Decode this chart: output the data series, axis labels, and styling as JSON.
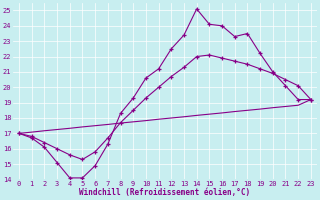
{
  "xlabel": "Windchill (Refroidissement éolien,°C)",
  "bg_color": "#c8eef0",
  "line_color": "#880088",
  "grid_color": "#b0d8dc",
  "xlim": [
    -0.5,
    23.5
  ],
  "ylim": [
    14,
    25.5
  ],
  "xticks": [
    0,
    1,
    2,
    3,
    4,
    5,
    6,
    7,
    8,
    9,
    10,
    11,
    12,
    13,
    14,
    15,
    16,
    17,
    18,
    19,
    20,
    21,
    22,
    23
  ],
  "yticks": [
    14,
    15,
    16,
    17,
    18,
    19,
    20,
    21,
    22,
    23,
    24,
    25
  ],
  "line1_x": [
    0,
    1,
    2,
    3,
    4,
    5,
    6,
    7,
    8,
    9,
    10,
    11,
    12,
    13,
    14,
    15,
    16,
    17,
    18,
    19,
    20,
    21,
    22,
    23
  ],
  "line1_y": [
    17.0,
    16.7,
    16.1,
    15.1,
    14.1,
    14.1,
    14.9,
    16.3,
    18.3,
    19.3,
    20.6,
    21.2,
    22.5,
    23.4,
    25.1,
    24.1,
    24.0,
    23.3,
    23.5,
    22.2,
    21.0,
    20.1,
    19.2,
    19.2
  ],
  "line2_x": [
    0,
    1,
    2,
    3,
    4,
    5,
    6,
    7,
    8,
    9,
    10,
    11,
    12,
    13,
    14,
    15,
    16,
    17,
    18,
    19,
    20,
    21,
    22,
    23
  ],
  "line2_y": [
    17.0,
    16.8,
    16.4,
    16.0,
    15.6,
    15.3,
    15.8,
    16.7,
    17.7,
    18.5,
    19.3,
    20.0,
    20.7,
    21.3,
    22.0,
    22.1,
    21.9,
    21.7,
    21.5,
    21.2,
    20.9,
    20.5,
    20.1,
    19.2
  ],
  "line3_x": [
    0,
    1,
    2,
    3,
    4,
    5,
    6,
    7,
    8,
    9,
    10,
    11,
    12,
    13,
    14,
    15,
    16,
    17,
    18,
    19,
    20,
    21,
    22,
    23
  ],
  "line3_y": [
    17.0,
    17.08,
    17.17,
    17.25,
    17.33,
    17.42,
    17.5,
    17.58,
    17.67,
    17.75,
    17.83,
    17.92,
    18.0,
    18.08,
    18.17,
    18.25,
    18.33,
    18.42,
    18.5,
    18.58,
    18.67,
    18.75,
    18.83,
    19.2
  ]
}
